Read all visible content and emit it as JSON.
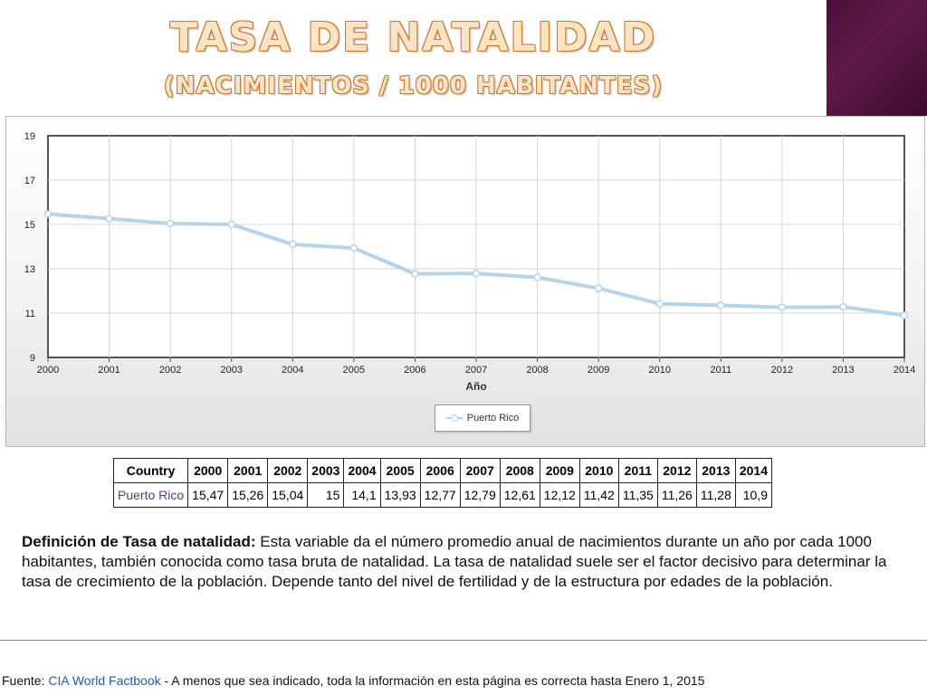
{
  "header": {
    "title": "Tasa de natalidad",
    "subtitle": "(nacimientos / 1000 habitantes)"
  },
  "colors": {
    "series_line": "#b7d3ea",
    "title_fill": "#fbe3c6",
    "title_outline": "#c87a2c",
    "corner_block": "#4a1036",
    "link": "#1f5fa6",
    "country_link": "#5b3a7e"
  },
  "chart_data": {
    "type": "line",
    "xlabel": "Año",
    "ylabel": "",
    "x": [
      "2000",
      "2001",
      "2002",
      "2003",
      "2004",
      "2005",
      "2006",
      "2007",
      "2008",
      "2009",
      "2010",
      "2011",
      "2012",
      "2013",
      "2014"
    ],
    "series": [
      {
        "name": "Puerto Rico",
        "values": [
          15.47,
          15.26,
          15.04,
          15,
          14.1,
          13.93,
          12.77,
          12.79,
          12.61,
          12.12,
          11.42,
          11.35,
          11.26,
          11.28,
          10.9
        ]
      }
    ],
    "ylim": [
      9,
      19
    ],
    "yticks": [
      "9",
      "11",
      "13",
      "15",
      "17",
      "19"
    ],
    "grid": true,
    "legend_position": "bottom-center"
  },
  "table": {
    "country_header": "Country",
    "years": [
      "2000",
      "2001",
      "2002",
      "2003",
      "2004",
      "2005",
      "2006",
      "2007",
      "2008",
      "2009",
      "2010",
      "2011",
      "2012",
      "2013",
      "2014"
    ],
    "country": "Puerto Rico",
    "values": [
      "15,47",
      "15,26",
      "15,04",
      "15",
      "14,1",
      "13,93",
      "12,77",
      "12,79",
      "12,61",
      "12,12",
      "11,42",
      "11,35",
      "11,26",
      "11,28",
      "10,9"
    ]
  },
  "definition": {
    "term": "Definición de Tasa de natalidad:",
    "text": " Esta variable da el número promedio anual de nacimientos durante un año por cada 1000 habitantes, también conocida como tasa bruta de natalidad. La tasa de natalidad suele ser el factor decisivo para determinar la tasa de crecimiento de la población. Depende tanto del nivel de fertilidad y de la estructura por edades de la población."
  },
  "footer": {
    "prefix": "Fuente: ",
    "link": "CIA World Factbook",
    "suffix": " - A menos que sea indicado, toda la información en esta página es correcta hasta Enero 1, 2015"
  }
}
